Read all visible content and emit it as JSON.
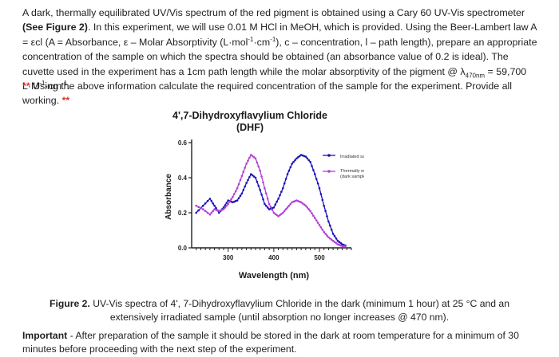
{
  "intro": {
    "t1": "A dark, thermally equilibrated UV/Vis spectrum of the red pigment is obtained using a Cary 60 UV-Vis spectrometer ",
    "fig_ref": "(See Figure 2)",
    "t2": ". In this experiment, we will use 0.01 M HCl in MeOH, which is provided. Using the Beer-Lambert law A = εcl (A = Absorbance, ε – Molar Absorptivity (L·mol",
    "sup1": "-1",
    "t3": "·cm",
    "sup2": "-1",
    "t4": "), c – concentration, l – path length), prepare an appropriate concentration of the sample on which the spectra should be obtained (an absorbance value of 0.2 is ideal). The cuvette used in the experiment has a 1cm path length while the molar absorptivity of the pigment @ λ",
    "sub1": "470nm",
    "t5": " = 59,700 L·M",
    "sup3": "-1",
    "t6": "·cm",
    "sup4": "-1",
    "t7": "."
  },
  "task": {
    "stars_left": "**",
    "text": " Using the above information calculate the required concentration of the sample for the experiment. Provide all working. ",
    "stars_right": "**"
  },
  "chart_data": {
    "type": "line",
    "title": "4',7-Dihydroxyflavylium Chloride",
    "subtitle": "(DHF)",
    "xlabel": "Wavelength (nm)",
    "ylabel": "Absorbance",
    "xlim": [
      220,
      570
    ],
    "ylim": [
      0.0,
      0.6
    ],
    "xticks": [
      "300",
      "400",
      "500"
    ],
    "yticks": [
      "0.0",
      "0.2",
      "0.4",
      "0.6"
    ],
    "legend_position": "top-right",
    "series": [
      {
        "name": "Irradiated sample",
        "color": "#1b12b8",
        "x": [
          230,
          245,
          260,
          270,
          280,
          290,
          300,
          310,
          320,
          330,
          340,
          350,
          360,
          370,
          380,
          390,
          400,
          410,
          420,
          430,
          440,
          450,
          460,
          470,
          480,
          490,
          500,
          510,
          520,
          530,
          540,
          550,
          560
        ],
        "y": [
          0.2,
          0.24,
          0.28,
          0.24,
          0.2,
          0.23,
          0.27,
          0.26,
          0.27,
          0.31,
          0.37,
          0.42,
          0.4,
          0.33,
          0.25,
          0.22,
          0.23,
          0.28,
          0.34,
          0.42,
          0.48,
          0.51,
          0.53,
          0.52,
          0.49,
          0.42,
          0.34,
          0.24,
          0.15,
          0.08,
          0.04,
          0.02,
          0.01
        ]
      },
      {
        "name": "Thermally equilibrated (dark sample)",
        "color": "#b23fd6",
        "x": [
          230,
          245,
          260,
          270,
          280,
          290,
          300,
          310,
          320,
          330,
          340,
          350,
          360,
          370,
          380,
          390,
          400,
          410,
          420,
          430,
          440,
          450,
          460,
          470,
          480,
          490,
          500,
          510,
          520,
          530,
          540,
          550,
          560
        ],
        "y": [
          0.24,
          0.22,
          0.19,
          0.22,
          0.21,
          0.22,
          0.25,
          0.29,
          0.34,
          0.41,
          0.48,
          0.53,
          0.51,
          0.44,
          0.34,
          0.25,
          0.2,
          0.18,
          0.2,
          0.23,
          0.26,
          0.27,
          0.26,
          0.24,
          0.21,
          0.17,
          0.13,
          0.09,
          0.06,
          0.04,
          0.02,
          0.01,
          0.01
        ]
      }
    ]
  },
  "caption": {
    "label": "Figure 2.",
    "text": " UV-Vis spectra of 4', 7-Dihydroxyflavylium Chloride in the dark (minimum 1 hour) at 25 °C and an extensively irradiated sample (until absorption no longer increases @ 470 nm)."
  },
  "important": {
    "label": "Important",
    "text": " - After preparation of the sample it should be stored in the dark at room temperature for a minimum of 30 minutes before proceeding with the next step of the experiment."
  }
}
